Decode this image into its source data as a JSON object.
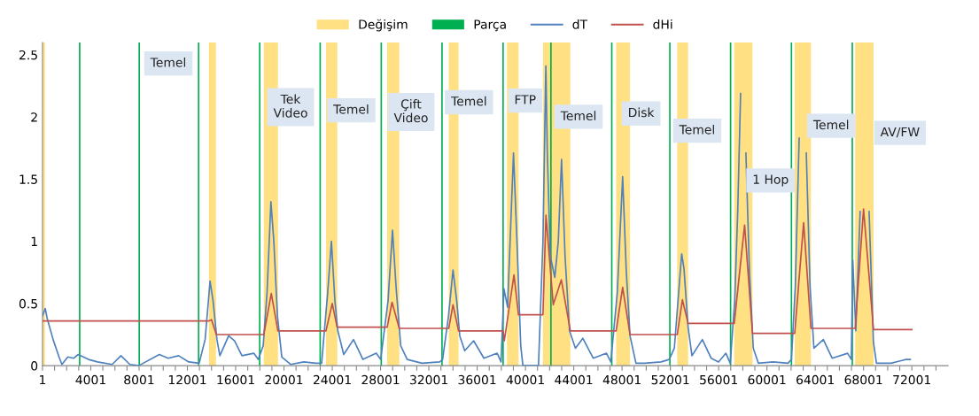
{
  "chart_data": {
    "type": "line",
    "xlim": [
      1,
      75001
    ],
    "ylim": [
      0,
      2.6
    ],
    "xticks": [
      1,
      {
        "value": 1001,
        "label": null
      },
      {
        "value": 2001,
        "label": null
      },
      {
        "value": 3001,
        "label": null
      },
      4001,
      {
        "value": 5001,
        "label": null
      },
      {
        "value": 6001,
        "label": null
      },
      {
        "value": 7001,
        "label": null
      },
      8001,
      {
        "value": 9001,
        "label": null
      },
      {
        "value": 10001,
        "label": null
      },
      {
        "value": 11001,
        "label": null
      },
      12001,
      {
        "value": 13001,
        "label": null
      },
      {
        "value": 14001,
        "label": null
      },
      {
        "value": 15001,
        "label": null
      },
      16001,
      {
        "value": 17001,
        "label": null
      },
      {
        "value": 18001,
        "label": null
      },
      {
        "value": 19001,
        "label": null
      },
      20001,
      {
        "value": 21001,
        "label": null
      },
      {
        "value": 22001,
        "label": null
      },
      {
        "value": 23001,
        "label": null
      },
      24001,
      {
        "value": 25001,
        "label": null
      },
      {
        "value": 26001,
        "label": null
      },
      {
        "value": 27001,
        "label": null
      },
      28001,
      {
        "value": 29001,
        "label": null
      },
      {
        "value": 30001,
        "label": null
      },
      {
        "value": 31001,
        "label": null
      },
      32001,
      {
        "value": 33001,
        "label": null
      },
      {
        "value": 34001,
        "label": null
      },
      {
        "value": 35001,
        "label": null
      },
      36001,
      {
        "value": 37001,
        "label": null
      },
      {
        "value": 38001,
        "label": null
      },
      {
        "value": 39001,
        "label": null
      },
      40001,
      {
        "value": 41001,
        "label": null
      },
      {
        "value": 42001,
        "label": null
      },
      {
        "value": 43001,
        "label": null
      },
      44001,
      {
        "value": 45001,
        "label": null
      },
      {
        "value": 46001,
        "label": null
      },
      {
        "value": 47001,
        "label": null
      },
      48001,
      {
        "value": 49001,
        "label": null
      },
      {
        "value": 50001,
        "label": null
      },
      {
        "value": 51001,
        "label": null
      },
      52001,
      {
        "value": 53001,
        "label": null
      },
      {
        "value": 54001,
        "label": null
      },
      {
        "value": 55001,
        "label": null
      },
      56001,
      {
        "value": 57001,
        "label": null
      },
      {
        "value": 58001,
        "label": null
      },
      {
        "value": 59001,
        "label": null
      },
      60001,
      {
        "value": 61001,
        "label": null
      },
      {
        "value": 62001,
        "label": null
      },
      {
        "value": 63001,
        "label": null
      },
      64001,
      {
        "value": 65001,
        "label": null
      },
      {
        "value": 66001,
        "label": null
      },
      {
        "value": 67001,
        "label": null
      },
      68001,
      {
        "value": 69001,
        "label": null
      },
      {
        "value": 70001,
        "label": null
      },
      {
        "value": 71001,
        "label": null
      },
      72001,
      {
        "value": 73001,
        "label": null
      },
      {
        "value": 74001,
        "label": null
      }
    ],
    "yticks": [
      0,
      0.5,
      1,
      1.5,
      2,
      2.5
    ],
    "grid": false,
    "legend": "top",
    "marker": "none",
    "line_style": "solid",
    "series": [
      {
        "name": "dT",
        "color": "#4f81bd",
        "x": [
          1,
          230,
          390,
          880,
          1370,
          1610,
          2100,
          2590,
          2960,
          3810,
          4550,
          5770,
          6500,
          7240,
          7970,
          9680,
          10410,
          11270,
          12120,
          12980,
          13470,
          13880,
          14130,
          14450,
          14690,
          15420,
          15910,
          16520,
          17500,
          17870,
          18280,
          18600,
          18920,
          19160,
          19460,
          19820,
          20550,
          21650,
          22630,
          23120,
          23490,
          23610,
          23930,
          24220,
          24460,
          24950,
          25760,
          26540,
          27640,
          28010,
          28620,
          28990,
          29280,
          29670,
          30210,
          31430,
          32900,
          33140,
          33630,
          34000,
          34310,
          34560,
          34970,
          35710,
          36560,
          37660,
          37980,
          38220,
          38520,
          39010,
          39300,
          39610,
          39790,
          41080,
          41450,
          41690,
          41810,
          42060,
          42430,
          42720,
          42990,
          43280,
          43650,
          44140,
          44750,
          45610,
          46710,
          47070,
          47610,
          48050,
          48350,
          48660,
          49150,
          49880,
          51230,
          51910,
          52330,
          52940,
          53130,
          53470,
          53790,
          54650,
          55380,
          55990,
          56600,
          56960,
          57330,
          57580,
          57820,
          57990,
          58260,
          58550,
          58870,
          59290,
          60510,
          61740,
          62030,
          62350,
          62670,
          62840,
          63080,
          63260,
          63570,
          63890,
          64670,
          65400,
          66680,
          66990,
          67110,
          67360,
          67720,
          67890,
          68210,
          68460,
          68820,
          69070,
          70290,
          71510,
          71870
        ],
        "values": [
          0.4,
          0.46,
          0.38,
          0.21,
          0.07,
          0.01,
          0.07,
          0.06,
          0.09,
          0.05,
          0.03,
          0.01,
          0.08,
          0.01,
          0.0,
          0.09,
          0.06,
          0.08,
          0.03,
          0.02,
          0.21,
          0.68,
          0.52,
          0.21,
          0.08,
          0.24,
          0.2,
          0.08,
          0.1,
          0.05,
          0.16,
          0.59,
          1.32,
          1.0,
          0.4,
          0.07,
          0.01,
          0.03,
          0.02,
          0.02,
          0.44,
          0.57,
          1.0,
          0.52,
          0.28,
          0.09,
          0.21,
          0.05,
          0.1,
          0.05,
          0.52,
          1.09,
          0.64,
          0.16,
          0.05,
          0.02,
          0.03,
          0.05,
          0.4,
          0.77,
          0.52,
          0.24,
          0.12,
          0.2,
          0.06,
          0.1,
          0.03,
          0.62,
          0.47,
          1.71,
          0.99,
          0.16,
          0.0,
          0.0,
          1.0,
          2.41,
          1.71,
          0.88,
          0.71,
          1.0,
          1.66,
          0.88,
          0.28,
          0.14,
          0.22,
          0.06,
          0.1,
          0.03,
          0.59,
          1.52,
          0.76,
          0.24,
          0.02,
          0.02,
          0.03,
          0.05,
          0.14,
          0.9,
          0.78,
          0.31,
          0.08,
          0.21,
          0.06,
          0.03,
          0.1,
          0.02,
          0.52,
          1.24,
          2.19,
          null,
          1.71,
          0.76,
          0.14,
          0.02,
          0.03,
          0.02,
          0.05,
          0.64,
          1.83,
          null,
          null,
          1.71,
          0.64,
          0.14,
          0.21,
          0.06,
          0.1,
          0.05,
          0.85,
          0.28,
          1.24,
          null,
          null,
          1.24,
          0.19,
          0.02,
          0.02,
          0.05,
          0.05
        ]
      },
      {
        "name": "dHi",
        "color": "#c0504d",
        "x": [
          1,
          13785,
          14000,
          14400,
          18330,
          18950,
          19500,
          23480,
          24000,
          24400,
          28550,
          28950,
          29550,
          33650,
          34000,
          34460,
          38150,
          38250,
          39050,
          39425,
          41450,
          41700,
          42300,
          42970,
          43720,
          47510,
          48050,
          48660,
          52570,
          53000,
          53470,
          57290,
          58150,
          58805,
          62300,
          63040,
          63645,
          67310,
          68000,
          68825,
          72001
        ],
        "values": [
          0.36,
          0.36,
          0.37,
          0.25,
          0.25,
          0.58,
          0.28,
          0.28,
          0.5,
          0.31,
          0.31,
          0.51,
          0.3,
          0.3,
          0.49,
          0.28,
          0.28,
          0.2,
          0.73,
          0.41,
          0.41,
          1.21,
          0.49,
          0.69,
          0.28,
          0.28,
          0.63,
          0.25,
          0.25,
          0.53,
          0.34,
          0.34,
          1.13,
          0.26,
          0.26,
          1.15,
          0.3,
          0.3,
          1.26,
          0.29,
          0.29
        ]
      }
    ],
    "bands": [
      {
        "axis": "x",
        "from": 1,
        "to": 200,
        "label": "Değişim",
        "color": "#ffe083"
      },
      {
        "axis": "x",
        "from": 13785,
        "to": 14370,
        "color": "#ffe083"
      },
      {
        "axis": "x",
        "from": 18330,
        "to": 19505,
        "color": "#ffe083"
      },
      {
        "axis": "x",
        "from": 23485,
        "to": 24415,
        "color": "#ffe083"
      },
      {
        "axis": "x",
        "from": 28545,
        "to": 29550,
        "color": "#ffe083"
      },
      {
        "axis": "x",
        "from": 33655,
        "to": 34460,
        "color": "#ffe083"
      },
      {
        "axis": "x",
        "from": 38470,
        "to": 39425,
        "color": "#ffe083"
      },
      {
        "axis": "x",
        "from": 41450,
        "to": 43720,
        "color": "#ffe083"
      },
      {
        "axis": "x",
        "from": 47510,
        "to": 48660,
        "color": "#ffe083"
      },
      {
        "axis": "x",
        "from": 52570,
        "to": 53470,
        "color": "#ffe083"
      },
      {
        "axis": "x",
        "from": 57290,
        "to": 58805,
        "color": "#ffe083"
      },
      {
        "axis": "x",
        "from": 62300,
        "to": 63645,
        "color": "#ffe083"
      },
      {
        "axis": "x",
        "from": 67310,
        "to": 68825,
        "color": "#ffe083"
      }
    ],
    "ref_lines": [
      {
        "axis": "x",
        "value": 3080,
        "label": "Parça",
        "color": "#00b050"
      },
      {
        "axis": "x",
        "value": 8015,
        "color": "#00b050"
      },
      {
        "axis": "x",
        "value": 12930,
        "color": "#00b050"
      },
      {
        "axis": "x",
        "value": 17990,
        "color": "#00b050"
      },
      {
        "axis": "x",
        "value": 23000,
        "color": "#00b050"
      },
      {
        "axis": "x",
        "value": 28060,
        "color": "#00b050"
      },
      {
        "axis": "x",
        "value": 33090,
        "color": "#00b050"
      },
      {
        "axis": "x",
        "value": 38150,
        "color": "#00b050"
      },
      {
        "axis": "x",
        "value": 42110,
        "color": "#00b050"
      },
      {
        "axis": "x",
        "value": 47150,
        "color": "#00b050"
      },
      {
        "axis": "x",
        "value": 51960,
        "color": "#00b050"
      },
      {
        "axis": "x",
        "value": 56990,
        "color": "#00b050"
      },
      {
        "axis": "x",
        "value": 62030,
        "color": "#00b050"
      },
      {
        "axis": "x",
        "value": 67070,
        "color": "#00b050"
      }
    ],
    "annotations": [
      "Temel",
      "Tek\nVideo",
      "Temel",
      "Çift\nVideo",
      "Temel",
      "FTP",
      "Temel",
      "Disk",
      "Temel",
      "1 Hop",
      "Temel",
      "AV/FW"
    ]
  }
}
